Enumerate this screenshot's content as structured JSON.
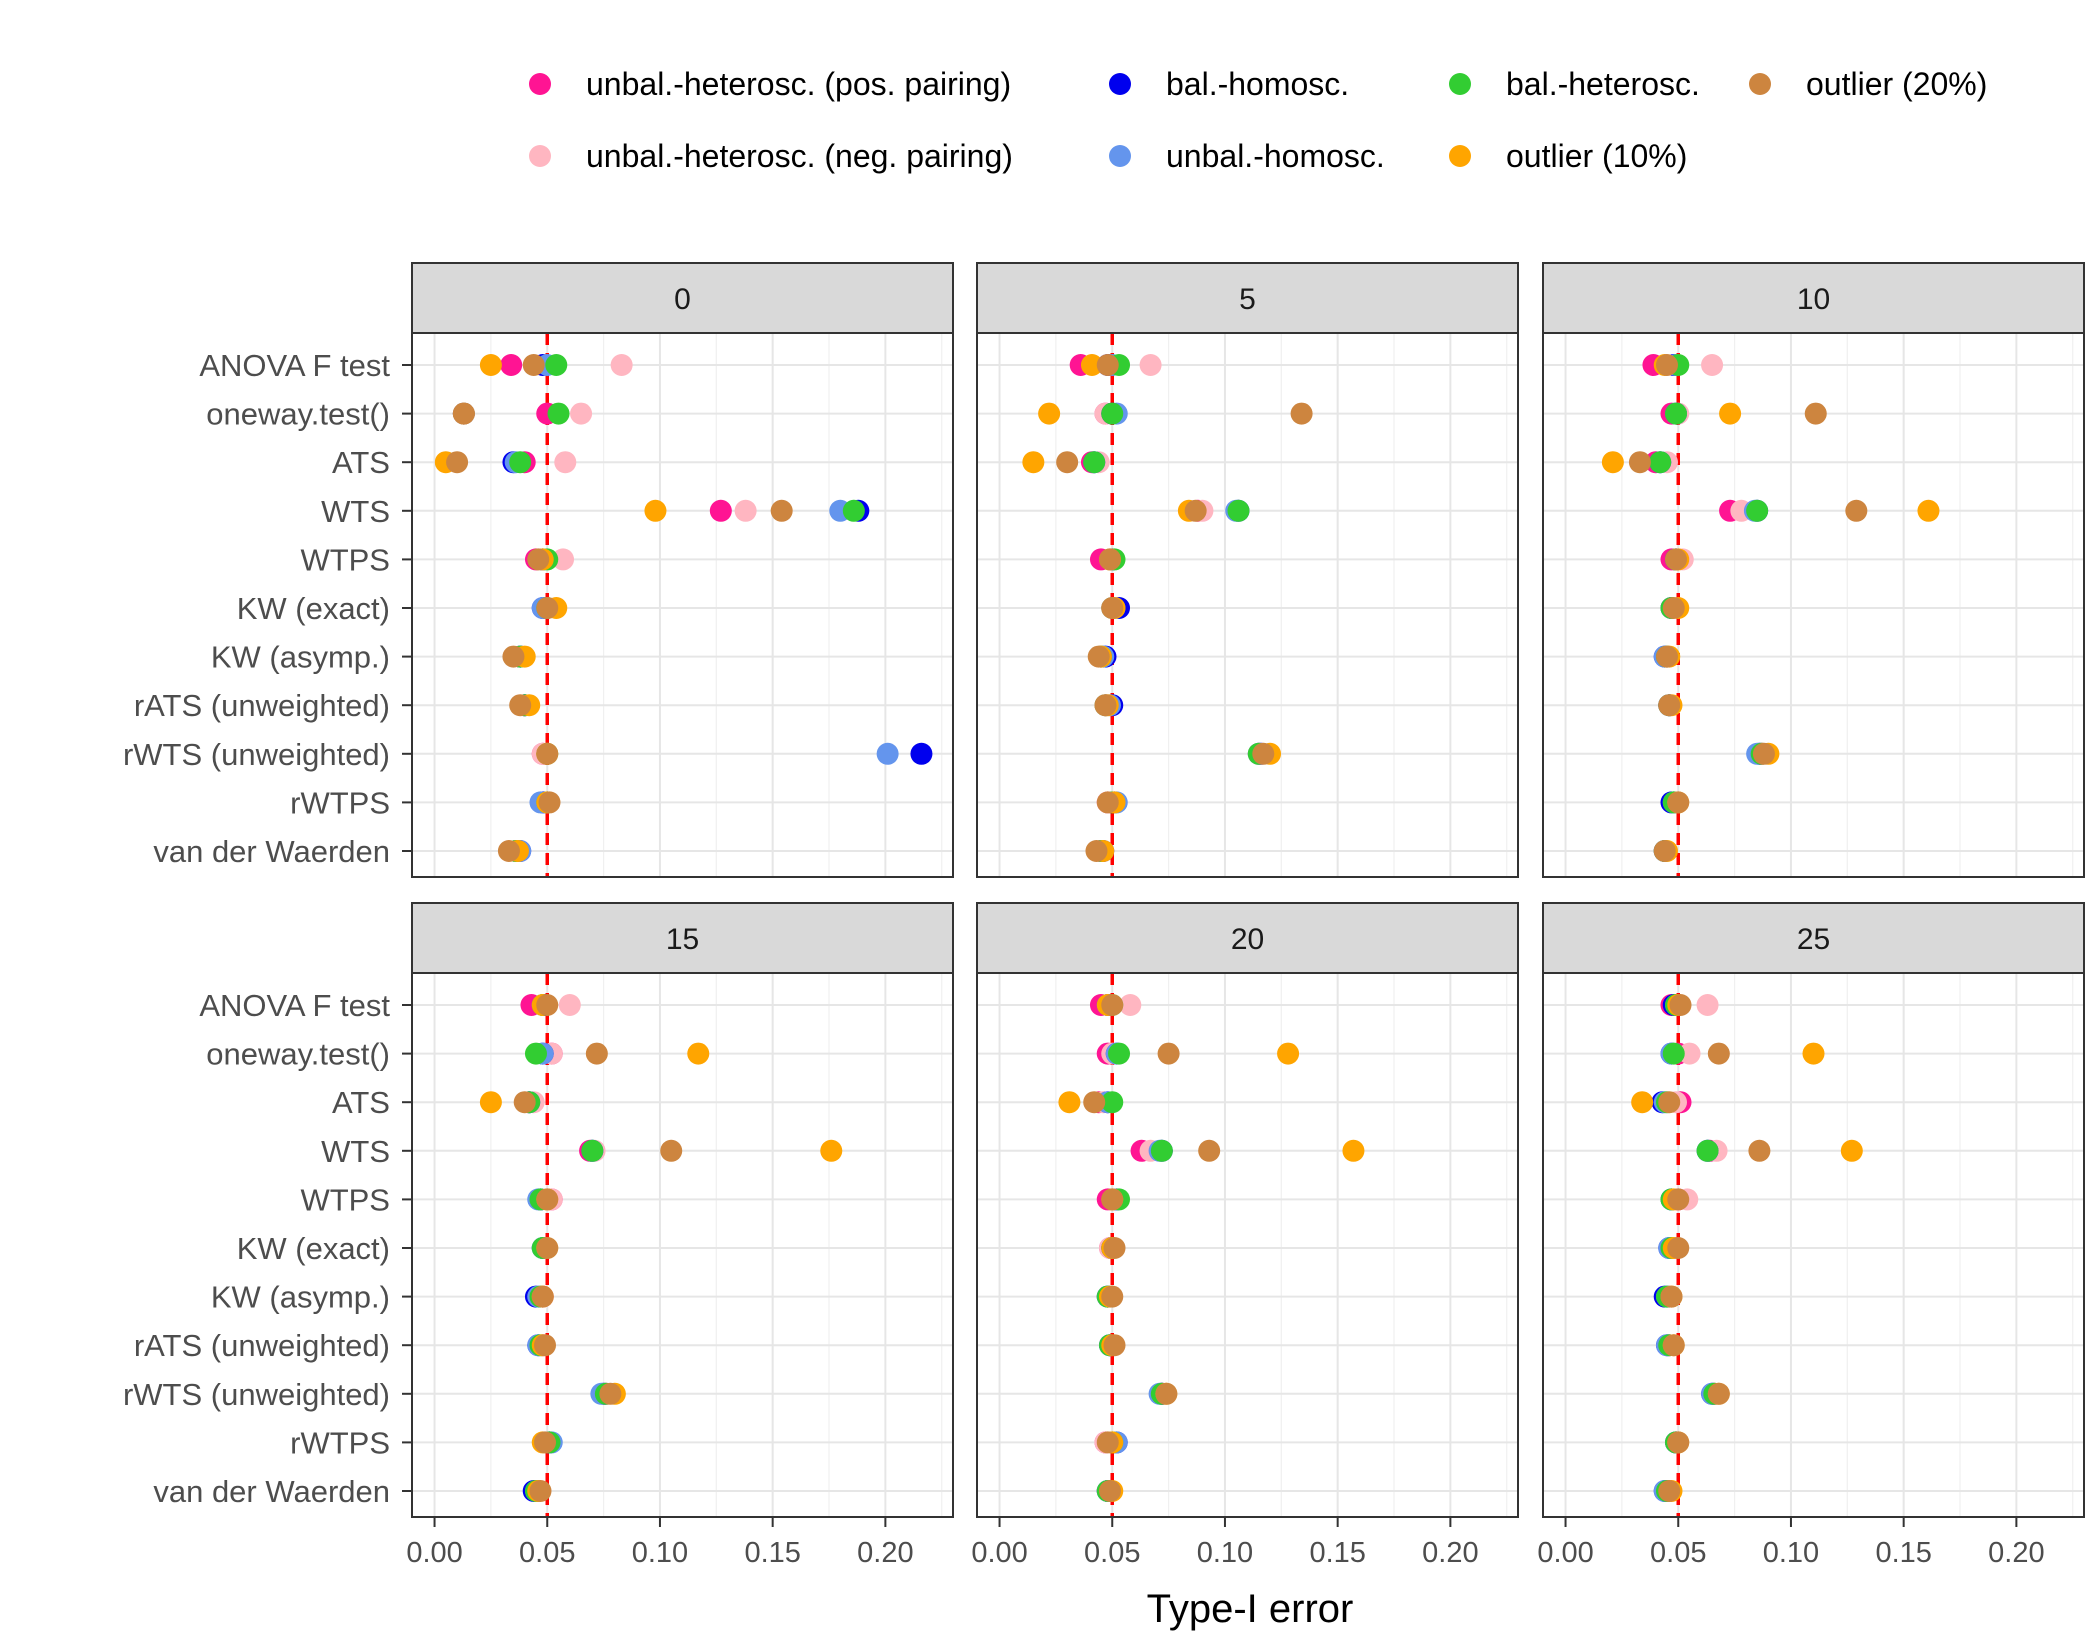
{
  "chart_data": {
    "type": "scatter",
    "xlabel": "Type-I error",
    "ylabel": "",
    "xlim": [
      -0.01,
      0.23
    ],
    "x_ticks": [
      0.0,
      0.05,
      0.1,
      0.15,
      0.2
    ],
    "x_tick_labels": [
      "0.00",
      "0.05",
      "0.10",
      "0.15",
      "0.20"
    ],
    "reference_line": {
      "x": 0.05,
      "color": "#ff0000",
      "style": "dashed"
    },
    "grid": true,
    "legend_position": "top",
    "categories": [
      "ANOVA F test",
      "oneway.test()",
      "ATS",
      "WTS",
      "WTPS",
      "KW (exact)",
      "KW (asymp.)",
      "rATS (unweighted)",
      "rWTS (unweighted)",
      "rWTPS",
      "van der Waerden"
    ],
    "series": [
      {
        "name": "unbal.-heterosc. (pos. pairing)",
        "color": "#ff1493"
      },
      {
        "name": "unbal.-heterosc. (neg. pairing)",
        "color": "#ffb6c1"
      },
      {
        "name": "bal.-homosc.",
        "color": "#0000ee"
      },
      {
        "name": "unbal.-homosc.",
        "color": "#6495ed"
      },
      {
        "name": "bal.-heterosc.",
        "color": "#32cd32"
      },
      {
        "name": "outlier (10%)",
        "color": "#ffa500"
      },
      {
        "name": "outlier (20%)",
        "color": "#cd853f"
      }
    ],
    "panels": [
      {
        "title": "0",
        "values": [
          [
            0.034,
            0.083,
            0.048,
            0.05,
            0.054,
            0.025,
            0.044
          ],
          [
            0.05,
            0.065,
            0.013,
            0.013,
            0.055,
            0.013,
            0.013
          ],
          [
            0.04,
            0.058,
            0.035,
            0.036,
            0.038,
            0.005,
            0.01
          ],
          [
            0.127,
            0.138,
            0.188,
            0.18,
            0.186,
            0.098,
            0.154
          ],
          [
            0.045,
            0.057,
            0.048,
            0.048,
            0.05,
            0.048,
            0.046
          ],
          [
            0.05,
            0.05,
            0.048,
            0.048,
            0.05,
            0.054,
            0.05
          ],
          [
            0.038,
            0.038,
            0.038,
            0.038,
            0.038,
            0.04,
            0.035
          ],
          [
            0.04,
            0.04,
            0.04,
            0.04,
            0.04,
            0.042,
            0.038
          ],
          [
            0.048,
            0.048,
            0.216,
            0.201,
            0.05,
            0.05,
            0.05
          ],
          [
            0.05,
            0.05,
            0.048,
            0.047,
            0.05,
            0.05,
            0.051
          ],
          [
            0.036,
            0.036,
            0.038,
            0.038,
            0.036,
            0.037,
            0.033
          ]
        ]
      },
      {
        "title": "5",
        "values": [
          [
            0.036,
            0.067,
            0.048,
            0.05,
            0.053,
            0.041,
            0.048
          ],
          [
            0.047,
            0.047,
            0.05,
            0.052,
            0.05,
            0.022,
            0.134
          ],
          [
            0.041,
            0.044,
            0.042,
            0.042,
            0.042,
            0.015,
            0.03
          ],
          [
            0.088,
            0.09,
            0.106,
            0.105,
            0.106,
            0.084,
            0.087
          ],
          [
            0.045,
            0.05,
            0.05,
            0.05,
            0.051,
            0.049,
            0.049
          ],
          [
            0.05,
            0.05,
            0.053,
            0.051,
            0.05,
            0.051,
            0.05
          ],
          [
            0.045,
            0.045,
            0.047,
            0.046,
            0.045,
            0.045,
            0.044
          ],
          [
            0.047,
            0.047,
            0.05,
            0.049,
            0.047,
            0.048,
            0.047
          ],
          [
            0.115,
            0.115,
            0.116,
            0.115,
            0.115,
            0.12,
            0.117
          ],
          [
            0.048,
            0.048,
            0.051,
            0.052,
            0.05,
            0.051,
            0.048
          ],
          [
            0.045,
            0.045,
            0.046,
            0.045,
            0.045,
            0.046,
            0.043
          ]
        ]
      },
      {
        "title": "10",
        "values": [
          [
            0.039,
            0.065,
            0.048,
            0.049,
            0.05,
            0.044,
            0.045
          ],
          [
            0.047,
            0.05,
            0.049,
            0.049,
            0.049,
            0.073,
            0.111
          ],
          [
            0.04,
            0.045,
            0.042,
            0.042,
            0.042,
            0.021,
            0.033
          ],
          [
            0.073,
            0.078,
            0.085,
            0.084,
            0.085,
            0.161,
            0.129
          ],
          [
            0.047,
            0.052,
            0.049,
            0.049,
            0.049,
            0.05,
            0.049
          ],
          [
            0.047,
            0.047,
            0.047,
            0.047,
            0.047,
            0.05,
            0.048
          ],
          [
            0.045,
            0.045,
            0.044,
            0.044,
            0.045,
            0.046,
            0.045
          ],
          [
            0.046,
            0.046,
            0.046,
            0.046,
            0.046,
            0.047,
            0.046
          ],
          [
            0.087,
            0.087,
            0.086,
            0.085,
            0.087,
            0.09,
            0.088
          ],
          [
            0.048,
            0.048,
            0.047,
            0.048,
            0.048,
            0.05,
            0.05
          ],
          [
            0.044,
            0.044,
            0.044,
            0.044,
            0.044,
            0.045,
            0.044
          ]
        ]
      },
      {
        "title": "15",
        "values": [
          [
            0.043,
            0.06,
            0.049,
            0.048,
            0.048,
            0.048,
            0.05
          ],
          [
            0.052,
            0.052,
            0.048,
            0.048,
            0.045,
            0.117,
            0.072
          ],
          [
            0.042,
            0.044,
            0.042,
            0.042,
            0.042,
            0.025,
            0.04
          ],
          [
            0.069,
            0.071,
            0.07,
            0.07,
            0.07,
            0.176,
            0.105
          ],
          [
            0.052,
            0.052,
            0.047,
            0.046,
            0.047,
            0.05,
            0.05
          ],
          [
            0.049,
            0.049,
            0.048,
            0.048,
            0.048,
            0.05,
            0.05
          ],
          [
            0.048,
            0.048,
            0.045,
            0.046,
            0.047,
            0.048,
            0.048
          ],
          [
            0.048,
            0.048,
            0.046,
            0.046,
            0.047,
            0.048,
            0.049
          ],
          [
            0.076,
            0.076,
            0.075,
            0.074,
            0.076,
            0.08,
            0.078
          ],
          [
            0.051,
            0.051,
            0.051,
            0.052,
            0.051,
            0.048,
            0.049
          ],
          [
            0.046,
            0.046,
            0.044,
            0.045,
            0.045,
            0.046,
            0.047
          ]
        ]
      },
      {
        "title": "20",
        "values": [
          [
            0.045,
            0.058,
            0.048,
            0.048,
            0.05,
            0.048,
            0.05
          ],
          [
            0.048,
            0.05,
            0.052,
            0.052,
            0.053,
            0.128,
            0.075
          ],
          [
            0.044,
            0.046,
            0.048,
            0.048,
            0.05,
            0.031,
            0.042
          ],
          [
            0.063,
            0.067,
            0.072,
            0.071,
            0.072,
            0.157,
            0.093
          ],
          [
            0.048,
            0.052,
            0.052,
            0.052,
            0.053,
            0.05,
            0.05
          ],
          [
            0.049,
            0.049,
            0.05,
            0.05,
            0.05,
            0.05,
            0.051
          ],
          [
            0.048,
            0.048,
            0.048,
            0.048,
            0.048,
            0.049,
            0.05
          ],
          [
            0.049,
            0.049,
            0.049,
            0.049,
            0.049,
            0.05,
            0.051
          ],
          [
            0.072,
            0.072,
            0.072,
            0.071,
            0.072,
            0.074,
            0.074
          ],
          [
            0.047,
            0.047,
            0.052,
            0.052,
            0.05,
            0.05,
            0.048
          ],
          [
            0.048,
            0.048,
            0.048,
            0.048,
            0.048,
            0.05,
            0.049
          ]
        ]
      },
      {
        "title": "25",
        "values": [
          [
            0.047,
            0.063,
            0.048,
            0.049,
            0.049,
            0.05,
            0.051
          ],
          [
            0.05,
            0.055,
            0.047,
            0.047,
            0.048,
            0.11,
            0.068
          ],
          [
            0.051,
            0.049,
            0.043,
            0.044,
            0.045,
            0.034,
            0.046
          ],
          [
            0.064,
            0.067,
            0.063,
            0.063,
            0.063,
            0.127,
            0.086
          ],
          [
            0.05,
            0.054,
            0.047,
            0.047,
            0.047,
            0.048,
            0.05
          ],
          [
            0.048,
            0.048,
            0.046,
            0.046,
            0.047,
            0.048,
            0.05
          ],
          [
            0.046,
            0.046,
            0.044,
            0.045,
            0.045,
            0.047,
            0.047
          ],
          [
            0.046,
            0.046,
            0.045,
            0.045,
            0.046,
            0.048,
            0.048
          ],
          [
            0.066,
            0.066,
            0.065,
            0.065,
            0.066,
            0.068,
            0.068
          ],
          [
            0.049,
            0.049,
            0.049,
            0.049,
            0.049,
            0.05,
            0.05
          ],
          [
            0.045,
            0.045,
            0.044,
            0.044,
            0.045,
            0.047,
            0.046
          ]
        ]
      }
    ]
  }
}
